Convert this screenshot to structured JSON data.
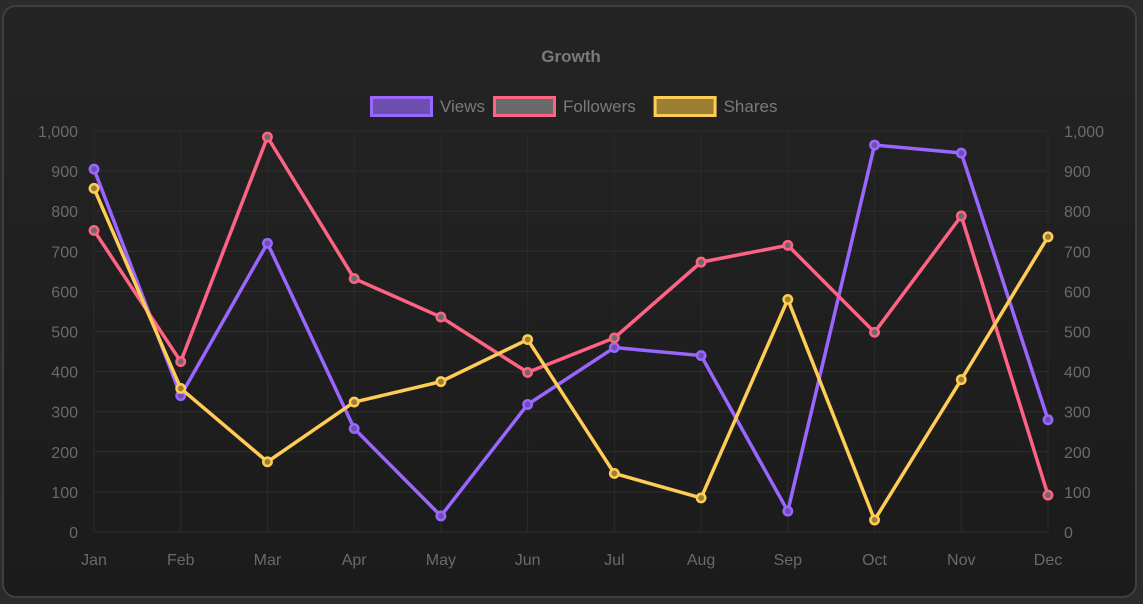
{
  "chart_data": {
    "type": "line",
    "title": "Growth",
    "categories": [
      "Jan",
      "Feb",
      "Mar",
      "Apr",
      "May",
      "Jun",
      "Jul",
      "Aug",
      "Sep",
      "Oct",
      "Nov",
      "Dec"
    ],
    "series": [
      {
        "name": "Views",
        "color": "#9966ff",
        "fill": "#6d4fb0",
        "values": [
          905,
          340,
          720,
          258,
          40,
          318,
          460,
          440,
          52,
          965,
          945,
          280
        ]
      },
      {
        "name": "Followers",
        "color": "#ff6384",
        "fill": "#6a6a6a",
        "values": [
          752,
          425,
          985,
          632,
          536,
          398,
          484,
          673,
          715,
          498,
          788,
          92
        ]
      },
      {
        "name": "Shares",
        "color": "#ffcd56",
        "fill": "#9c7f33",
        "values": [
          857,
          358,
          175,
          324,
          375,
          480,
          146,
          85,
          580,
          30,
          380,
          736
        ]
      }
    ],
    "y_ticks": [
      "0",
      "100",
      "200",
      "300",
      "400",
      "500",
      "600",
      "700",
      "800",
      "900",
      "1,000"
    ],
    "ylim": [
      0,
      1000
    ],
    "grid": true,
    "legend_position": "top",
    "y_axis_both_sides": true
  }
}
